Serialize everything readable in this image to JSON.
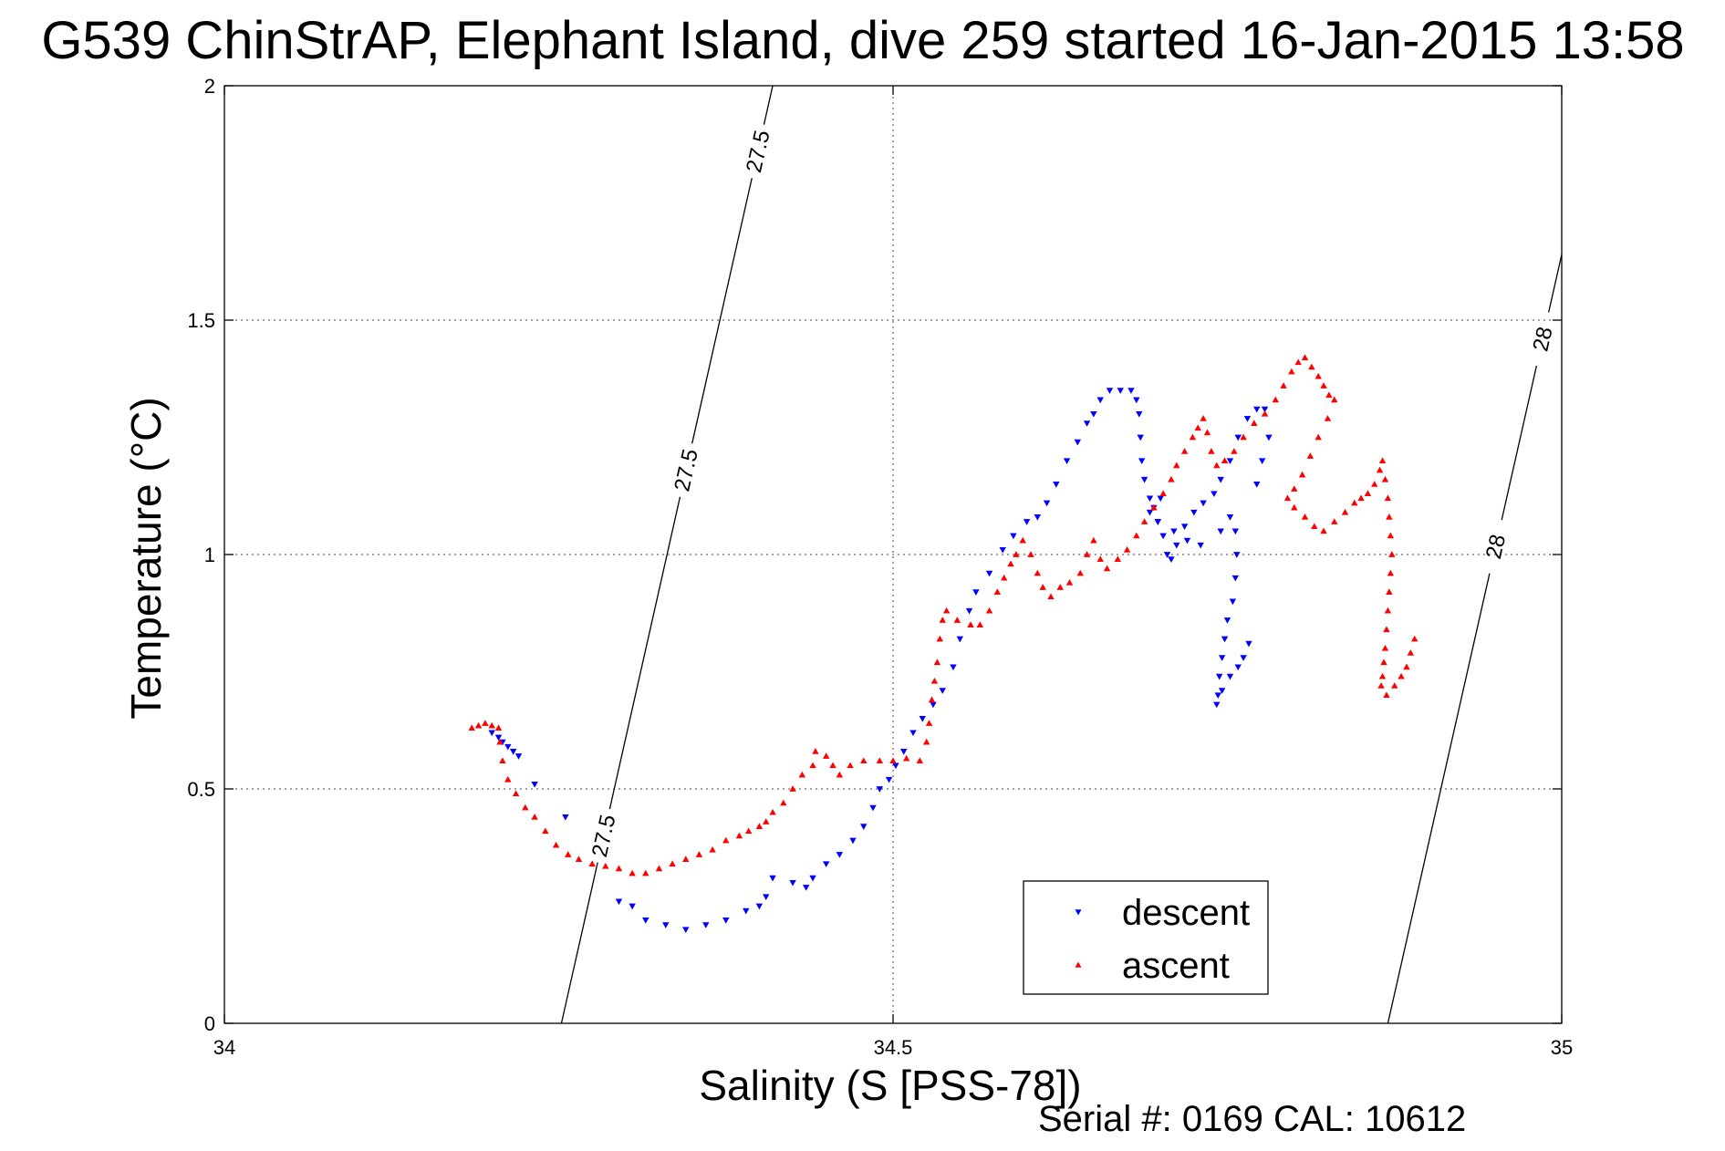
{
  "chart_data": {
    "type": "scatter",
    "title": "G539 ChinStrAP, Elephant Island, dive 259 started 16-Jan-2015 13:58",
    "xlabel": "Salinity (S [PSS-78])",
    "ylabel": "Temperature (°C)",
    "footer": "Serial #: 0169 CAL: 10612",
    "xlim": [
      34,
      35
    ],
    "ylim": [
      0,
      2
    ],
    "x_ticks": [
      34,
      34.5,
      35
    ],
    "x_tick_labels": [
      "34",
      "34.5",
      "35"
    ],
    "y_ticks": [
      0,
      0.5,
      1,
      1.5,
      2
    ],
    "y_tick_labels": [
      "0",
      "0.5",
      "1",
      "1.5",
      "2"
    ],
    "grid": true,
    "legend_position": "bottom-right",
    "series": [
      {
        "name": "descent",
        "marker": "triangle-down",
        "color": "#0000ff",
        "points": [
          [
            34.2,
            0.62
          ],
          [
            34.205,
            0.61
          ],
          [
            34.208,
            0.6
          ],
          [
            34.212,
            0.59
          ],
          [
            34.216,
            0.58
          ],
          [
            34.22,
            0.57
          ],
          [
            34.232,
            0.51
          ],
          [
            34.255,
            0.44
          ],
          [
            34.295,
            0.26
          ],
          [
            34.305,
            0.25
          ],
          [
            34.315,
            0.22
          ],
          [
            34.33,
            0.21
          ],
          [
            34.345,
            0.2
          ],
          [
            34.36,
            0.21
          ],
          [
            34.375,
            0.22
          ],
          [
            34.39,
            0.24
          ],
          [
            34.4,
            0.25
          ],
          [
            34.405,
            0.27
          ],
          [
            34.41,
            0.31
          ],
          [
            34.425,
            0.3
          ],
          [
            34.435,
            0.29
          ],
          [
            34.44,
            0.31
          ],
          [
            34.45,
            0.34
          ],
          [
            34.46,
            0.36
          ],
          [
            34.47,
            0.39
          ],
          [
            34.478,
            0.42
          ],
          [
            34.485,
            0.46
          ],
          [
            34.49,
            0.5
          ],
          [
            34.497,
            0.52
          ],
          [
            34.502,
            0.55
          ],
          [
            34.508,
            0.58
          ],
          [
            34.515,
            0.62
          ],
          [
            34.522,
            0.65
          ],
          [
            34.53,
            0.68
          ],
          [
            34.537,
            0.71
          ],
          [
            34.545,
            0.76
          ],
          [
            34.55,
            0.82
          ],
          [
            34.557,
            0.88
          ],
          [
            34.562,
            0.92
          ],
          [
            34.572,
            0.96
          ],
          [
            34.582,
            1.01
          ],
          [
            34.59,
            1.04
          ],
          [
            34.6,
            1.07
          ],
          [
            34.608,
            1.08
          ],
          [
            34.615,
            1.11
          ],
          [
            34.622,
            1.15
          ],
          [
            34.63,
            1.2
          ],
          [
            34.638,
            1.24
          ],
          [
            34.645,
            1.28
          ],
          [
            34.65,
            1.3
          ],
          [
            34.655,
            1.33
          ],
          [
            34.662,
            1.35
          ],
          [
            34.67,
            1.35
          ],
          [
            34.678,
            1.35
          ],
          [
            34.682,
            1.33
          ],
          [
            34.684,
            1.3
          ],
          [
            34.685,
            1.25
          ],
          [
            34.686,
            1.2
          ],
          [
            34.688,
            1.16
          ],
          [
            34.692,
            1.12
          ],
          [
            34.695,
            1.1
          ],
          [
            34.698,
            1.07
          ],
          [
            34.702,
            1.04
          ],
          [
            34.705,
            1.0
          ],
          [
            34.708,
            0.99
          ],
          [
            34.712,
            1.02
          ],
          [
            34.718,
            1.06
          ],
          [
            34.725,
            1.09
          ],
          [
            34.732,
            1.11
          ],
          [
            34.74,
            1.13
          ],
          [
            34.745,
            1.16
          ],
          [
            34.752,
            1.2
          ],
          [
            34.758,
            1.25
          ],
          [
            34.765,
            1.29
          ],
          [
            34.772,
            1.31
          ],
          [
            34.778,
            1.31
          ],
          [
            34.781,
            1.25
          ],
          [
            34.776,
            1.2
          ],
          [
            34.772,
            1.15
          ],
          [
            34.7,
            1.12
          ],
          [
            34.692,
            1.09
          ],
          [
            34.698,
            1.07
          ],
          [
            34.71,
            1.05
          ],
          [
            34.72,
            1.03
          ],
          [
            34.73,
            1.02
          ],
          [
            34.745,
            1.05
          ],
          [
            34.752,
            1.08
          ],
          [
            34.756,
            1.05
          ],
          [
            34.757,
            1.0
          ],
          [
            34.756,
            0.95
          ],
          [
            34.754,
            0.9
          ],
          [
            34.75,
            0.86
          ],
          [
            34.748,
            0.82
          ],
          [
            34.746,
            0.78
          ],
          [
            34.744,
            0.74
          ],
          [
            34.743,
            0.7
          ],
          [
            34.742,
            0.68
          ],
          [
            34.746,
            0.71
          ],
          [
            34.752,
            0.74
          ],
          [
            34.758,
            0.76
          ],
          [
            34.762,
            0.78
          ],
          [
            34.766,
            0.81
          ]
        ]
      },
      {
        "name": "ascent",
        "marker": "triangle-up",
        "color": "#ff0000",
        "points": [
          [
            34.185,
            0.63
          ],
          [
            34.19,
            0.635
          ],
          [
            34.195,
            0.64
          ],
          [
            34.2,
            0.635
          ],
          [
            34.205,
            0.63
          ],
          [
            34.206,
            0.6
          ],
          [
            34.208,
            0.56
          ],
          [
            34.212,
            0.52
          ],
          [
            34.218,
            0.49
          ],
          [
            34.225,
            0.46
          ],
          [
            34.232,
            0.44
          ],
          [
            34.24,
            0.41
          ],
          [
            34.248,
            0.38
          ],
          [
            34.257,
            0.36
          ],
          [
            34.265,
            0.35
          ],
          [
            34.275,
            0.34
          ],
          [
            34.285,
            0.335
          ],
          [
            34.295,
            0.33
          ],
          [
            34.305,
            0.32
          ],
          [
            34.315,
            0.32
          ],
          [
            34.325,
            0.33
          ],
          [
            34.335,
            0.34
          ],
          [
            34.345,
            0.35
          ],
          [
            34.355,
            0.36
          ],
          [
            34.365,
            0.37
          ],
          [
            34.375,
            0.39
          ],
          [
            34.385,
            0.4
          ],
          [
            34.392,
            0.41
          ],
          [
            34.4,
            0.42
          ],
          [
            34.405,
            0.43
          ],
          [
            34.41,
            0.45
          ],
          [
            34.418,
            0.47
          ],
          [
            34.425,
            0.5
          ],
          [
            34.432,
            0.53
          ],
          [
            34.44,
            0.55
          ],
          [
            34.442,
            0.58
          ],
          [
            34.45,
            0.57
          ],
          [
            34.455,
            0.55
          ],
          [
            34.46,
            0.53
          ],
          [
            34.468,
            0.55
          ],
          [
            34.478,
            0.56
          ],
          [
            34.49,
            0.56
          ],
          [
            34.5,
            0.56
          ],
          [
            34.51,
            0.565
          ],
          [
            34.52,
            0.56
          ],
          [
            34.525,
            0.6
          ],
          [
            34.527,
            0.64
          ],
          [
            34.529,
            0.69
          ],
          [
            34.531,
            0.73
          ],
          [
            34.533,
            0.77
          ],
          [
            34.535,
            0.82
          ],
          [
            34.537,
            0.86
          ],
          [
            34.54,
            0.88
          ],
          [
            34.548,
            0.86
          ],
          [
            34.558,
            0.85
          ],
          [
            34.565,
            0.85
          ],
          [
            34.572,
            0.88
          ],
          [
            34.578,
            0.92
          ],
          [
            34.583,
            0.95
          ],
          [
            34.588,
            0.98
          ],
          [
            34.592,
            1.0
          ],
          [
            34.597,
            1.03
          ],
          [
            34.603,
            1.0
          ],
          [
            34.608,
            0.96
          ],
          [
            34.612,
            0.93
          ],
          [
            34.618,
            0.91
          ],
          [
            34.625,
            0.93
          ],
          [
            34.632,
            0.94
          ],
          [
            34.64,
            0.96
          ],
          [
            34.645,
            1.0
          ],
          [
            34.65,
            1.03
          ],
          [
            34.655,
            0.99
          ],
          [
            34.66,
            0.97
          ],
          [
            34.668,
            0.99
          ],
          [
            34.675,
            1.01
          ],
          [
            34.682,
            1.04
          ],
          [
            34.688,
            1.07
          ],
          [
            34.695,
            1.1
          ],
          [
            34.702,
            1.13
          ],
          [
            34.708,
            1.16
          ],
          [
            34.712,
            1.19
          ],
          [
            34.718,
            1.22
          ],
          [
            34.724,
            1.25
          ],
          [
            34.728,
            1.27
          ],
          [
            34.732,
            1.29
          ],
          [
            34.735,
            1.26
          ],
          [
            34.738,
            1.22
          ],
          [
            34.742,
            1.19
          ],
          [
            34.748,
            1.2
          ],
          [
            34.755,
            1.22
          ],
          [
            34.762,
            1.25
          ],
          [
            34.77,
            1.28
          ],
          [
            34.778,
            1.3
          ],
          [
            34.786,
            1.33
          ],
          [
            34.792,
            1.36
          ],
          [
            34.798,
            1.39
          ],
          [
            34.803,
            1.41
          ],
          [
            34.808,
            1.42
          ],
          [
            34.813,
            1.4
          ],
          [
            34.818,
            1.38
          ],
          [
            34.822,
            1.36
          ],
          [
            34.826,
            1.34
          ],
          [
            34.83,
            1.33
          ],
          [
            34.825,
            1.29
          ],
          [
            34.818,
            1.25
          ],
          [
            34.812,
            1.21
          ],
          [
            34.806,
            1.17
          ],
          [
            34.8,
            1.14
          ],
          [
            34.795,
            1.12
          ],
          [
            34.8,
            1.1
          ],
          [
            34.808,
            1.08
          ],
          [
            34.815,
            1.06
          ],
          [
            34.822,
            1.05
          ],
          [
            34.83,
            1.07
          ],
          [
            34.838,
            1.09
          ],
          [
            34.845,
            1.11
          ],
          [
            34.85,
            1.12
          ],
          [
            34.855,
            1.13
          ],
          [
            34.86,
            1.15
          ],
          [
            34.864,
            1.18
          ],
          [
            34.866,
            1.2
          ],
          [
            34.868,
            1.16
          ],
          [
            34.87,
            1.12
          ],
          [
            34.871,
            1.08
          ],
          [
            34.872,
            1.04
          ],
          [
            34.873,
            1.0
          ],
          [
            34.872,
            0.96
          ],
          [
            34.871,
            0.92
          ],
          [
            34.87,
            0.88
          ],
          [
            34.869,
            0.84
          ],
          [
            34.868,
            0.8
          ],
          [
            34.867,
            0.77
          ],
          [
            34.866,
            0.74
          ],
          [
            34.865,
            0.72
          ],
          [
            34.869,
            0.7
          ],
          [
            34.875,
            0.72
          ],
          [
            34.88,
            0.74
          ],
          [
            34.884,
            0.76
          ],
          [
            34.887,
            0.79
          ],
          [
            34.89,
            0.82
          ]
        ]
      }
    ],
    "contours": [
      {
        "label": "27.5",
        "points": [
          [
            34.252,
            0
          ],
          [
            34.41,
            2
          ]
        ],
        "label_positions": [
          0.2,
          0.59,
          0.93
        ]
      },
      {
        "label": "28",
        "points": [
          [
            34.87,
            0
          ],
          [
            35,
            1.64
          ]
        ],
        "label_positions": [
          0.62,
          0.89
        ]
      }
    ]
  }
}
